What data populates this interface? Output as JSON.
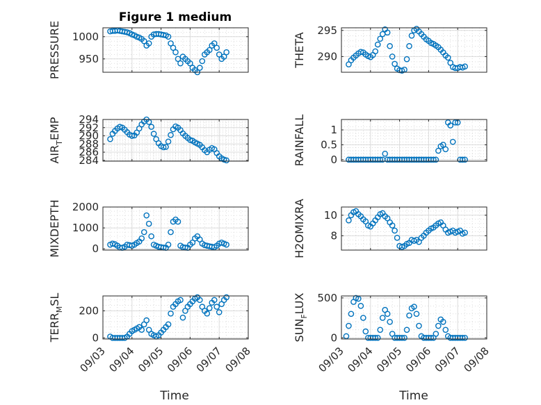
{
  "figure": {
    "title": "Figure 1 medium",
    "marker_color": "#0072BD",
    "x_labels": [
      "Time",
      "Time"
    ]
  },
  "chart_data": [
    {
      "id": "pressure",
      "type": "scatter",
      "ylabel": "PRESSURE",
      "xlabel": "",
      "xlim": [
        "09/03",
        "09/08"
      ],
      "ylim": [
        920,
        1020
      ],
      "yticks": [
        950,
        1000
      ],
      "ytick_labels": [
        "950",
        "1000"
      ],
      "grid": true,
      "x": [
        "09/03 06:00",
        "09/03 08:00",
        "09/03 10:00",
        "09/03 12:00",
        "09/03 14:00",
        "09/03 16:00",
        "09/03 18:00",
        "09/03 20:00",
        "09/03 22:00",
        "09/04 00:00",
        "09/04 02:00",
        "09/04 04:00",
        "09/04 06:00",
        "09/04 08:00",
        "09/04 10:00",
        "09/04 12:00",
        "09/04 14:00",
        "09/04 16:00",
        "09/04 18:00",
        "09/04 20:00",
        "09/04 22:00",
        "09/05 00:00",
        "09/05 02:00",
        "09/05 04:00",
        "09/05 06:00",
        "09/05 08:00",
        "09/05 10:00",
        "09/05 12:00",
        "09/05 14:00",
        "09/05 16:00",
        "09/05 18:00",
        "09/05 20:00",
        "09/05 22:00",
        "09/06 00:00",
        "09/06 02:00",
        "09/06 04:00",
        "09/06 06:00",
        "09/06 08:00",
        "09/06 10:00",
        "09/06 12:00",
        "09/06 14:00",
        "09/06 16:00",
        "09/06 18:00",
        "09/06 20:00",
        "09/06 22:00",
        "09/07 00:00",
        "09/07 02:00",
        "09/07 04:00",
        "09/07 06:00"
      ],
      "y": [
        1012,
        1013,
        1013,
        1014,
        1013,
        1012,
        1011,
        1010,
        1008,
        1005,
        1003,
        1000,
        998,
        995,
        990,
        980,
        985,
        1000,
        1005,
        1006,
        1006,
        1005,
        1004,
        1003,
        1000,
        985,
        975,
        965,
        950,
        940,
        955,
        950,
        945,
        940,
        930,
        925,
        920,
        930,
        945,
        960,
        965,
        970,
        980,
        985,
        975,
        960,
        950,
        955,
        965
      ]
    },
    {
      "id": "theta",
      "type": "scatter",
      "ylabel": "THETA",
      "xlabel": "",
      "xlim": [
        "09/03",
        "09/08"
      ],
      "ylim": [
        287,
        295.5
      ],
      "yticks": [
        290,
        295
      ],
      "ytick_labels": [
        "290",
        "295"
      ],
      "grid": true,
      "x": [
        "09/03 06:00",
        "09/03 08:00",
        "09/03 10:00",
        "09/03 12:00",
        "09/03 14:00",
        "09/03 16:00",
        "09/03 18:00",
        "09/03 20:00",
        "09/03 22:00",
        "09/04 00:00",
        "09/04 02:00",
        "09/04 04:00",
        "09/04 06:00",
        "09/04 08:00",
        "09/04 10:00",
        "09/04 12:00",
        "09/04 14:00",
        "09/04 16:00",
        "09/04 18:00",
        "09/04 20:00",
        "09/04 22:00",
        "09/05 00:00",
        "09/05 02:00",
        "09/05 04:00",
        "09/05 06:00",
        "09/05 08:00",
        "09/05 10:00",
        "09/05 12:00",
        "09/05 14:00",
        "09/05 16:00",
        "09/05 18:00",
        "09/05 20:00",
        "09/05 22:00",
        "09/06 00:00",
        "09/06 02:00",
        "09/06 04:00",
        "09/06 06:00",
        "09/06 08:00",
        "09/06 10:00",
        "09/06 12:00",
        "09/06 14:00",
        "09/06 16:00",
        "09/06 18:00",
        "09/06 20:00",
        "09/06 22:00",
        "09/07 00:00",
        "09/07 02:00",
        "09/07 04:00",
        "09/07 06:00"
      ],
      "y": [
        288.5,
        289.3,
        289.8,
        290.2,
        290.6,
        290.9,
        290.8,
        290.4,
        290.1,
        289.9,
        290.3,
        291,
        292.3,
        293.4,
        294.3,
        295.2,
        294.6,
        292,
        290,
        288.6,
        287.7,
        287.4,
        287.3,
        287.5,
        289.5,
        292,
        294,
        295,
        295.3,
        294.8,
        294.3,
        293.8,
        293.3,
        293,
        292.6,
        292.4,
        292.1,
        291.8,
        291.3,
        290.8,
        290.2,
        289.8,
        288.8,
        288,
        287.8,
        287.8,
        288,
        287.9,
        288.1
      ]
    },
    {
      "id": "air_temp",
      "type": "scatter",
      "ylabel_main": "AIR",
      "ylabel_sub": "T",
      "ylabel_rest": "EMP",
      "xlabel": "",
      "xlim": [
        "09/03",
        "09/08"
      ],
      "ylim": [
        283.8,
        294
      ],
      "yticks": [
        284,
        286,
        288,
        290,
        292,
        294
      ],
      "ytick_labels": [
        "284",
        "286",
        "288",
        "290",
        "292",
        "294"
      ],
      "grid": true,
      "x": [
        "09/03 06:00",
        "09/03 08:00",
        "09/03 10:00",
        "09/03 12:00",
        "09/03 14:00",
        "09/03 16:00",
        "09/03 18:00",
        "09/03 20:00",
        "09/03 22:00",
        "09/04 00:00",
        "09/04 02:00",
        "09/04 04:00",
        "09/04 06:00",
        "09/04 08:00",
        "09/04 10:00",
        "09/04 12:00",
        "09/04 14:00",
        "09/04 16:00",
        "09/04 18:00",
        "09/04 20:00",
        "09/04 22:00",
        "09/05 00:00",
        "09/05 02:00",
        "09/05 04:00",
        "09/05 06:00",
        "09/05 08:00",
        "09/05 10:00",
        "09/05 12:00",
        "09/05 14:00",
        "09/05 16:00",
        "09/05 18:00",
        "09/05 20:00",
        "09/05 22:00",
        "09/06 00:00",
        "09/06 02:00",
        "09/06 04:00",
        "09/06 06:00",
        "09/06 08:00",
        "09/06 10:00",
        "09/06 12:00",
        "09/06 14:00",
        "09/06 16:00",
        "09/06 18:00",
        "09/06 20:00",
        "09/06 22:00",
        "09/07 00:00",
        "09/07 02:00",
        "09/07 04:00",
        "09/07 06:00"
      ],
      "y": [
        289.2,
        290.5,
        291.2,
        291.8,
        292.2,
        292,
        291.5,
        290.9,
        290.3,
        290,
        290.1,
        290.8,
        291.8,
        292.8,
        293.5,
        294,
        293.4,
        292.2,
        290.5,
        289.2,
        288.2,
        287.5,
        287.2,
        287.3,
        288.6,
        290.2,
        291.6,
        292.3,
        292,
        291.4,
        290.6,
        290,
        289.5,
        289,
        288.8,
        288.4,
        288.1,
        287.8,
        287.2,
        286.5,
        286,
        286.6,
        287,
        286.7,
        285.8,
        285,
        284.5,
        284.2,
        284
      ]
    },
    {
      "id": "rainfall",
      "type": "scatter",
      "ylabel": "RAINFALL",
      "xlabel": "",
      "xlim": [
        "09/03",
        "09/08"
      ],
      "ylim": [
        -0.05,
        1.35
      ],
      "yticks": [
        0,
        0.5,
        1
      ],
      "ytick_labels": [
        "0",
        "0.5",
        "1"
      ],
      "grid": true,
      "x": [
        "09/03 06:00",
        "09/03 08:00",
        "09/03 10:00",
        "09/03 12:00",
        "09/03 14:00",
        "09/03 16:00",
        "09/03 18:00",
        "09/03 20:00",
        "09/03 22:00",
        "09/04 00:00",
        "09/04 02:00",
        "09/04 04:00",
        "09/04 06:00",
        "09/04 08:00",
        "09/04 10:00",
        "09/04 12:00",
        "09/04 14:00",
        "09/04 16:00",
        "09/04 18:00",
        "09/04 20:00",
        "09/04 22:00",
        "09/05 00:00",
        "09/05 02:00",
        "09/05 04:00",
        "09/05 06:00",
        "09/05 08:00",
        "09/05 10:00",
        "09/05 12:00",
        "09/05 14:00",
        "09/05 16:00",
        "09/05 18:00",
        "09/05 20:00",
        "09/05 22:00",
        "09/06 00:00",
        "09/06 02:00",
        "09/06 04:00",
        "09/06 06:00",
        "09/06 08:00",
        "09/06 10:00",
        "09/06 12:00",
        "09/06 14:00",
        "09/06 16:00",
        "09/06 18:00",
        "09/06 20:00",
        "09/06 22:00",
        "09/07 00:00",
        "09/07 02:00",
        "09/07 04:00",
        "09/07 06:00"
      ],
      "y": [
        0,
        0,
        0,
        0,
        0,
        0,
        0,
        0,
        0,
        0,
        0,
        0,
        0,
        0,
        0,
        0.2,
        0,
        0,
        0,
        0,
        0,
        0,
        0,
        0,
        0,
        0,
        0,
        0,
        0,
        0,
        0,
        0,
        0,
        0,
        0,
        0,
        0,
        0.3,
        0.45,
        0.5,
        0.35,
        1.25,
        1.15,
        0.6,
        1.25,
        1.25,
        0,
        0,
        0
      ]
    },
    {
      "id": "mixdepth",
      "type": "scatter",
      "ylabel": "MIXDEPTH",
      "xlabel": "",
      "xlim": [
        "09/03",
        "09/08"
      ],
      "ylim": [
        -60,
        2000
      ],
      "yticks": [
        0,
        1000,
        2000
      ],
      "ytick_labels": [
        "0",
        "1000",
        "2000"
      ],
      "grid": true,
      "x": [
        "09/03 06:00",
        "09/03 08:00",
        "09/03 10:00",
        "09/03 12:00",
        "09/03 14:00",
        "09/03 16:00",
        "09/03 18:00",
        "09/03 20:00",
        "09/03 22:00",
        "09/04 00:00",
        "09/04 02:00",
        "09/04 04:00",
        "09/04 06:00",
        "09/04 08:00",
        "09/04 10:00",
        "09/04 12:00",
        "09/04 14:00",
        "09/04 16:00",
        "09/04 18:00",
        "09/04 20:00",
        "09/04 22:00",
        "09/05 00:00",
        "09/05 02:00",
        "09/05 04:00",
        "09/05 06:00",
        "09/05 08:00",
        "09/05 10:00",
        "09/05 12:00",
        "09/05 14:00",
        "09/05 16:00",
        "09/05 18:00",
        "09/05 20:00",
        "09/05 22:00",
        "09/06 00:00",
        "09/06 02:00",
        "09/06 04:00",
        "09/06 06:00",
        "09/06 08:00",
        "09/06 10:00",
        "09/06 12:00",
        "09/06 14:00",
        "09/06 16:00",
        "09/06 18:00",
        "09/06 20:00",
        "09/06 22:00",
        "09/07 00:00",
        "09/07 02:00",
        "09/07 04:00",
        "09/07 06:00"
      ],
      "y": [
        200,
        250,
        220,
        150,
        60,
        50,
        100,
        200,
        180,
        150,
        200,
        280,
        350,
        500,
        800,
        1600,
        1200,
        600,
        200,
        150,
        100,
        80,
        60,
        50,
        200,
        800,
        1300,
        1400,
        1300,
        150,
        80,
        60,
        50,
        200,
        300,
        500,
        600,
        450,
        250,
        180,
        150,
        120,
        100,
        80,
        150,
        250,
        300,
        250,
        200
      ]
    },
    {
      "id": "h2omixra",
      "type": "scatter",
      "ylabel": "H2OMIXRA",
      "xlabel": "",
      "xlim": [
        "09/03",
        "09/08"
      ],
      "ylim": [
        6.6,
        10.8
      ],
      "yticks": [
        8,
        10
      ],
      "ytick_labels": [
        "8",
        "10"
      ],
      "grid": true,
      "x": [
        "09/03 06:00",
        "09/03 08:00",
        "09/03 10:00",
        "09/03 12:00",
        "09/03 14:00",
        "09/03 16:00",
        "09/03 18:00",
        "09/03 20:00",
        "09/03 22:00",
        "09/04 00:00",
        "09/04 02:00",
        "09/04 04:00",
        "09/04 06:00",
        "09/04 08:00",
        "09/04 10:00",
        "09/04 12:00",
        "09/04 14:00",
        "09/04 16:00",
        "09/04 18:00",
        "09/04 20:00",
        "09/04 22:00",
        "09/05 00:00",
        "09/05 02:00",
        "09/05 04:00",
        "09/05 06:00",
        "09/05 08:00",
        "09/05 10:00",
        "09/05 12:00",
        "09/05 14:00",
        "09/05 16:00",
        "09/05 18:00",
        "09/05 20:00",
        "09/05 22:00",
        "09/06 00:00",
        "09/06 02:00",
        "09/06 04:00",
        "09/06 06:00",
        "09/06 08:00",
        "09/06 10:00",
        "09/06 12:00",
        "09/06 14:00",
        "09/06 16:00",
        "09/06 18:00",
        "09/06 20:00",
        "09/06 22:00",
        "09/07 00:00",
        "09/07 02:00",
        "09/07 04:00",
        "09/07 06:00"
      ],
      "y": [
        9.5,
        10,
        10.3,
        10.4,
        10.1,
        9.9,
        9.6,
        9.4,
        9,
        8.9,
        9.2,
        9.5,
        9.8,
        10.1,
        10.2,
        9.9,
        9.7,
        9.3,
        9,
        8.5,
        7.8,
        7,
        6.9,
        7,
        7.2,
        7.3,
        7.6,
        7.5,
        7.6,
        7.4,
        7.8,
        8,
        8.3,
        8.5,
        8.7,
        8.8,
        9,
        9.2,
        9.3,
        9,
        8.6,
        8.3,
        8.4,
        8.5,
        8.3,
        8.4,
        8.5,
        8.2,
        8.3
      ]
    },
    {
      "id": "terr_msl",
      "type": "scatter",
      "ylabel_main": "TERR",
      "ylabel_sub": "M",
      "ylabel_rest": "SL",
      "xlabel": "Time",
      "xlim": [
        "09/03",
        "09/08"
      ],
      "ylim": [
        -8,
        310
      ],
      "yticks": [
        0,
        200
      ],
      "ytick_labels": [
        "0",
        "200"
      ],
      "xticks": [
        "09/03",
        "09/04",
        "09/05",
        "09/06",
        "09/07",
        "09/08"
      ],
      "grid": true,
      "x": [
        "09/03 06:00",
        "09/03 08:00",
        "09/03 10:00",
        "09/03 12:00",
        "09/03 14:00",
        "09/03 16:00",
        "09/03 18:00",
        "09/03 20:00",
        "09/03 22:00",
        "09/04 00:00",
        "09/04 02:00",
        "09/04 04:00",
        "09/04 06:00",
        "09/04 08:00",
        "09/04 10:00",
        "09/04 12:00",
        "09/04 14:00",
        "09/04 16:00",
        "09/04 18:00",
        "09/04 20:00",
        "09/04 22:00",
        "09/05 00:00",
        "09/05 02:00",
        "09/05 04:00",
        "09/05 06:00",
        "09/05 08:00",
        "09/05 10:00",
        "09/05 12:00",
        "09/05 14:00",
        "09/05 16:00",
        "09/05 18:00",
        "09/05 20:00",
        "09/05 22:00",
        "09/06 00:00",
        "09/06 02:00",
        "09/06 04:00",
        "09/06 06:00",
        "09/06 08:00",
        "09/06 10:00",
        "09/06 12:00",
        "09/06 14:00",
        "09/06 16:00",
        "09/06 18:00",
        "09/06 20:00",
        "09/06 22:00",
        "09/07 00:00",
        "09/07 02:00",
        "09/07 04:00",
        "09/07 06:00"
      ],
      "y": [
        10,
        0,
        0,
        0,
        0,
        0,
        0,
        10,
        30,
        50,
        60,
        70,
        80,
        60,
        100,
        130,
        60,
        30,
        20,
        10,
        20,
        40,
        60,
        80,
        100,
        180,
        230,
        250,
        270,
        280,
        150,
        200,
        230,
        250,
        270,
        290,
        300,
        280,
        230,
        200,
        180,
        220,
        260,
        280,
        230,
        190,
        250,
        280,
        300
      ]
    },
    {
      "id": "sun_flux",
      "type": "scatter",
      "ylabel_main": "SUN",
      "ylabel_sub": "F",
      "ylabel_rest": "LUX",
      "xlabel": "Time",
      "xlim": [
        "09/03",
        "09/08"
      ],
      "ylim": [
        -15,
        525
      ],
      "yticks": [
        0,
        500
      ],
      "ytick_labels": [
        "0",
        "500"
      ],
      "xticks": [
        "09/03",
        "09/04",
        "09/05",
        "09/06",
        "09/07",
        "09/08"
      ],
      "grid": true,
      "x": [
        "09/03 04:00",
        "09/03 06:00",
        "09/03 08:00",
        "09/03 10:00",
        "09/03 12:00",
        "09/03 14:00",
        "09/03 16:00",
        "09/03 18:00",
        "09/03 20:00",
        "09/03 22:00",
        "09/04 00:00",
        "09/04 02:00",
        "09/04 04:00",
        "09/04 06:00",
        "09/04 08:00",
        "09/04 10:00",
        "09/04 12:00",
        "09/04 14:00",
        "09/04 16:00",
        "09/04 18:00",
        "09/04 20:00",
        "09/04 22:00",
        "09/05 00:00",
        "09/05 02:00",
        "09/05 04:00",
        "09/05 06:00",
        "09/05 08:00",
        "09/05 10:00",
        "09/05 12:00",
        "09/05 14:00",
        "09/05 16:00",
        "09/05 18:00",
        "09/05 20:00",
        "09/05 22:00",
        "09/06 00:00",
        "09/06 02:00",
        "09/06 04:00",
        "09/06 06:00",
        "09/06 08:00",
        "09/06 10:00",
        "09/06 12:00",
        "09/06 14:00",
        "09/06 16:00",
        "09/06 18:00",
        "09/06 20:00",
        "09/06 22:00",
        "09/07 00:00",
        "09/07 02:00",
        "09/07 04:00",
        "09/07 06:00"
      ],
      "y": [
        20,
        150,
        300,
        450,
        500,
        490,
        400,
        250,
        80,
        0,
        0,
        0,
        0,
        0,
        100,
        250,
        350,
        300,
        200,
        50,
        0,
        0,
        0,
        0,
        0,
        100,
        280,
        370,
        390,
        300,
        150,
        20,
        0,
        0,
        0,
        0,
        0,
        50,
        150,
        230,
        200,
        100,
        20,
        0,
        0,
        0,
        0,
        0,
        0,
        0
      ]
    }
  ]
}
